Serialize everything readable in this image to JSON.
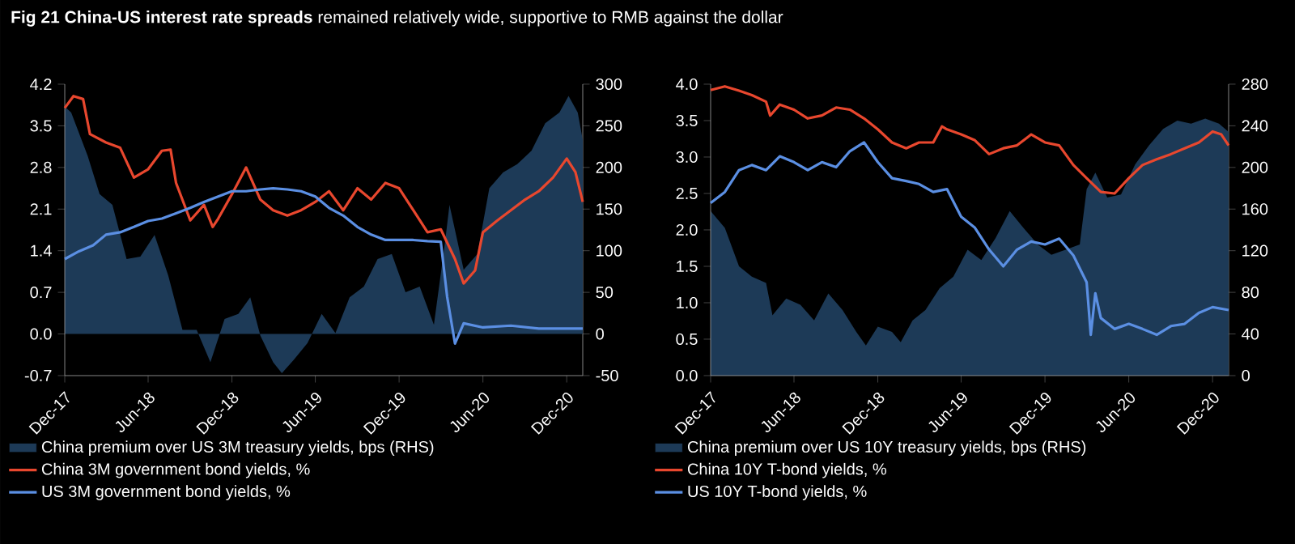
{
  "chart_data": [
    {
      "type": "line",
      "title": "**Fig 21  China-US interest rate spreads** remained relatively wide, supportive to RMB against the dollar",
      "xlim": [
        "2017-12-01",
        "2021-01-05"
      ],
      "xticks": [
        {
          "value": "2017-12-01",
          "label": "Dec-17"
        },
        {
          "value": "2018-06-01",
          "label": "Jun-18"
        },
        {
          "value": "2018-12-01",
          "label": "Dec-18"
        },
        {
          "value": "2019-06-01",
          "label": "Jun-19"
        },
        {
          "value": "2019-12-01",
          "label": "Dec-19"
        },
        {
          "value": "2020-06-01",
          "label": "Jun-20"
        },
        {
          "value": "2020-12-01",
          "label": "Dec-20"
        }
      ],
      "ylim": [
        -0.7,
        4.2
      ],
      "yticks": [
        -0.7,
        {
          "value": 0,
          "label": "0.0"
        },
        0.7,
        1.4,
        2.1,
        2.8,
        3.5,
        4.2
      ],
      "y2lim": [
        -50,
        300
      ],
      "y2ticks": [
        -50,
        0,
        50,
        100,
        150,
        200,
        250,
        300
      ],
      "legend": "bottom",
      "series": [
        {
          "name": "China premium over US 3M treasury yields, bps (RHS)",
          "type": "area",
          "axis": "y2",
          "color": "#1d3a57",
          "x": [
            "2017-12-01",
            "2017-12-15",
            "2018-01-20",
            "2018-02-15",
            "2018-03-15",
            "2018-04-15",
            "2018-05-15",
            "2018-06-15",
            "2018-07-15",
            "2018-08-15",
            "2018-09-15",
            "2018-10-15",
            "2018-11-15",
            "2018-12-15",
            "2019-01-10",
            "2019-02-01",
            "2019-03-01",
            "2019-03-20",
            "2019-04-15",
            "2019-05-15",
            "2019-06-15",
            "2019-07-15",
            "2019-08-15",
            "2019-09-15",
            "2019-10-15",
            "2019-11-15",
            "2019-12-15",
            "2020-01-15",
            "2020-02-15",
            "2020-03-10",
            "2020-03-20",
            "2020-04-20",
            "2020-05-20",
            "2020-06-15",
            "2020-07-15",
            "2020-08-15",
            "2020-09-15",
            "2020-10-15",
            "2020-11-15",
            "2020-12-05",
            "2020-12-25",
            "2021-01-05"
          ],
          "values": [
            273,
            266,
            214,
            168,
            155,
            90,
            93,
            119,
            70,
            5,
            5,
            -34,
            18,
            24,
            44,
            -2,
            -34,
            -47,
            -31,
            -11,
            24,
            1,
            44,
            57,
            90,
            96,
            50,
            57,
            11,
            109,
            155,
            77,
            96,
            175,
            194,
            204,
            220,
            253,
            266,
            286,
            266,
            233
          ]
        },
        {
          "name": "China 3M government bond yields, %",
          "color": "#e8472e",
          "x": [
            "2017-12-01",
            "2017-12-20",
            "2018-01-10",
            "2018-01-25",
            "2018-03-01",
            "2018-04-01",
            "2018-05-01",
            "2018-06-01",
            "2018-07-01",
            "2018-07-20",
            "2018-08-01",
            "2018-09-01",
            "2018-10-01",
            "2018-10-20",
            "2018-11-01",
            "2018-12-01",
            "2019-01-01",
            "2019-02-01",
            "2019-03-01",
            "2019-04-01",
            "2019-05-01",
            "2019-06-01",
            "2019-07-01",
            "2019-08-01",
            "2019-09-01",
            "2019-10-01",
            "2019-11-01",
            "2019-12-01",
            "2020-01-01",
            "2020-02-01",
            "2020-03-01",
            "2020-04-01",
            "2020-04-20",
            "2020-05-15",
            "2020-06-01",
            "2020-07-01",
            "2020-08-01",
            "2020-09-01",
            "2020-10-01",
            "2020-11-01",
            "2020-12-01",
            "2020-12-20",
            "2021-01-05"
          ],
          "values": [
            3.8,
            4.0,
            3.95,
            3.36,
            3.22,
            3.13,
            2.63,
            2.77,
            3.08,
            3.1,
            2.54,
            1.91,
            2.17,
            1.8,
            1.94,
            2.35,
            2.8,
            2.26,
            2.08,
            1.99,
            2.08,
            2.22,
            2.4,
            2.08,
            2.45,
            2.26,
            2.54,
            2.45,
            2.08,
            1.71,
            1.76,
            1.26,
            0.85,
            1.07,
            1.71,
            1.9,
            2.08,
            2.26,
            2.4,
            2.63,
            2.95,
            2.72,
            2.22
          ]
        },
        {
          "name": "US 3M government bond yields, %",
          "color": "#5b8fe3",
          "x": [
            "2017-12-01",
            "2018-01-01",
            "2018-02-01",
            "2018-03-01",
            "2018-04-01",
            "2018-05-01",
            "2018-06-01",
            "2018-07-01",
            "2018-08-01",
            "2018-09-01",
            "2018-10-01",
            "2018-11-01",
            "2018-12-01",
            "2019-01-01",
            "2019-02-01",
            "2019-03-01",
            "2019-04-01",
            "2019-05-01",
            "2019-06-01",
            "2019-07-01",
            "2019-08-01",
            "2019-09-01",
            "2019-10-01",
            "2019-11-01",
            "2019-12-01",
            "2020-01-01",
            "2020-02-01",
            "2020-03-01",
            "2020-03-15",
            "2020-04-01",
            "2020-04-20",
            "2020-06-01",
            "2020-08-01",
            "2020-10-01",
            "2020-12-01",
            "2021-01-05"
          ],
          "values": [
            1.26,
            1.39,
            1.49,
            1.67,
            1.71,
            1.8,
            1.9,
            1.94,
            2.03,
            2.12,
            2.22,
            2.31,
            2.4,
            2.4,
            2.43,
            2.45,
            2.43,
            2.4,
            2.31,
            2.12,
            1.99,
            1.8,
            1.67,
            1.58,
            1.58,
            1.58,
            1.56,
            1.55,
            0.62,
            -0.16,
            0.18,
            0.11,
            0.14,
            0.09,
            0.09,
            0.09
          ]
        }
      ]
    },
    {
      "type": "line",
      "xlim": [
        "2017-12-01",
        "2021-01-05"
      ],
      "xticks": [
        {
          "value": "2017-12-01",
          "label": "Dec-17"
        },
        {
          "value": "2018-06-01",
          "label": "Jun-18"
        },
        {
          "value": "2018-12-01",
          "label": "Dec-18"
        },
        {
          "value": "2019-06-01",
          "label": "Jun-19"
        },
        {
          "value": "2019-12-01",
          "label": "Dec-19"
        },
        {
          "value": "2020-06-01",
          "label": "Jun-20"
        },
        {
          "value": "2020-12-01",
          "label": "Dec-20"
        }
      ],
      "ylim": [
        0,
        4
      ],
      "yticks": [
        {
          "value": 0,
          "label": "0.0"
        },
        0.5,
        {
          "value": 1,
          "label": "1.0"
        },
        1.5,
        {
          "value": 2,
          "label": "2.0"
        },
        2.5,
        {
          "value": 3,
          "label": "3.0"
        },
        3.5,
        {
          "value": 4,
          "label": "4.0"
        }
      ],
      "y2lim": [
        0,
        280
      ],
      "y2ticks": [
        0,
        40,
        80,
        120,
        160,
        200,
        240,
        280
      ],
      "legend": "bottom",
      "series": [
        {
          "name": "China premium over US 10Y treasury yields, bps (RHS)",
          "type": "area",
          "axis": "y2",
          "color": "#1d3a57",
          "x": [
            "2017-12-01",
            "2018-01-01",
            "2018-02-01",
            "2018-03-01",
            "2018-04-01",
            "2018-04-15",
            "2018-05-15",
            "2018-06-15",
            "2018-07-15",
            "2018-08-15",
            "2018-09-15",
            "2018-10-15",
            "2018-11-05",
            "2018-12-01",
            "2019-01-01",
            "2019-01-20",
            "2019-02-15",
            "2019-03-15",
            "2019-04-15",
            "2019-05-15",
            "2019-06-15",
            "2019-07-15",
            "2019-08-15",
            "2019-09-15",
            "2019-10-15",
            "2019-11-15",
            "2019-12-15",
            "2020-01-15",
            "2020-02-15",
            "2020-03-01",
            "2020-03-20",
            "2020-04-15",
            "2020-05-15",
            "2020-06-15",
            "2020-07-15",
            "2020-08-15",
            "2020-09-15",
            "2020-10-15",
            "2020-11-15",
            "2020-12-15",
            "2021-01-05"
          ],
          "values": [
            158,
            142,
            105,
            95,
            89,
            58,
            74,
            68,
            53,
            79,
            63,
            42,
            29,
            47,
            42,
            32,
            53,
            63,
            84,
            95,
            121,
            111,
            132,
            158,
            142,
            126,
            116,
            121,
            126,
            179,
            195,
            171,
            174,
            203,
            221,
            237,
            245,
            242,
            247,
            242,
            234
          ]
        },
        {
          "name": "China 10Y T-bond yields, %",
          "color": "#e8472e",
          "x": [
            "2017-12-01",
            "2018-01-01",
            "2018-02-01",
            "2018-03-01",
            "2018-04-01",
            "2018-04-10",
            "2018-05-01",
            "2018-06-01",
            "2018-07-01",
            "2018-08-01",
            "2018-09-01",
            "2018-10-01",
            "2018-11-01",
            "2018-12-01",
            "2019-01-01",
            "2019-02-01",
            "2019-03-01",
            "2019-04-01",
            "2019-04-20",
            "2019-05-01",
            "2019-06-01",
            "2019-07-01",
            "2019-08-01",
            "2019-09-01",
            "2019-10-01",
            "2019-11-01",
            "2019-12-01",
            "2020-01-01",
            "2020-02-01",
            "2020-03-01",
            "2020-04-01",
            "2020-05-01",
            "2020-06-01",
            "2020-07-01",
            "2020-08-01",
            "2020-09-01",
            "2020-10-01",
            "2020-11-01",
            "2020-12-01",
            "2020-12-20",
            "2021-01-05"
          ],
          "values": [
            3.92,
            3.97,
            3.91,
            3.85,
            3.76,
            3.57,
            3.72,
            3.65,
            3.53,
            3.57,
            3.68,
            3.65,
            3.53,
            3.38,
            3.2,
            3.12,
            3.2,
            3.2,
            3.42,
            3.38,
            3.31,
            3.23,
            3.04,
            3.12,
            3.16,
            3.31,
            3.2,
            3.16,
            2.89,
            2.71,
            2.52,
            2.5,
            2.71,
            2.89,
            2.97,
            3.04,
            3.12,
            3.2,
            3.35,
            3.31,
            3.16
          ]
        },
        {
          "name": "US 10Y T-bond yields, %",
          "color": "#5b8fe3",
          "x": [
            "2017-12-01",
            "2018-01-01",
            "2018-02-01",
            "2018-03-01",
            "2018-04-01",
            "2018-05-01",
            "2018-06-01",
            "2018-07-01",
            "2018-08-01",
            "2018-09-01",
            "2018-10-01",
            "2018-11-01",
            "2018-12-01",
            "2019-01-01",
            "2019-02-01",
            "2019-03-01",
            "2019-04-01",
            "2019-05-01",
            "2019-06-01",
            "2019-07-01",
            "2019-08-01",
            "2019-09-01",
            "2019-10-01",
            "2019-11-01",
            "2019-12-01",
            "2020-01-01",
            "2020-02-01",
            "2020-03-01",
            "2020-03-10",
            "2020-03-20",
            "2020-04-01",
            "2020-05-01",
            "2020-06-01",
            "2020-07-01",
            "2020-08-01",
            "2020-09-01",
            "2020-10-01",
            "2020-11-01",
            "2020-12-01",
            "2021-01-05"
          ],
          "values": [
            2.37,
            2.52,
            2.82,
            2.89,
            2.82,
            3.01,
            2.93,
            2.82,
            2.93,
            2.86,
            3.08,
            3.2,
            2.93,
            2.71,
            2.67,
            2.63,
            2.52,
            2.56,
            2.18,
            2.03,
            1.73,
            1.5,
            1.73,
            1.84,
            1.8,
            1.88,
            1.65,
            1.28,
            0.56,
            1.13,
            0.79,
            0.64,
            0.71,
            0.64,
            0.56,
            0.68,
            0.71,
            0.86,
            0.94,
            0.9
          ]
        }
      ]
    }
  ]
}
